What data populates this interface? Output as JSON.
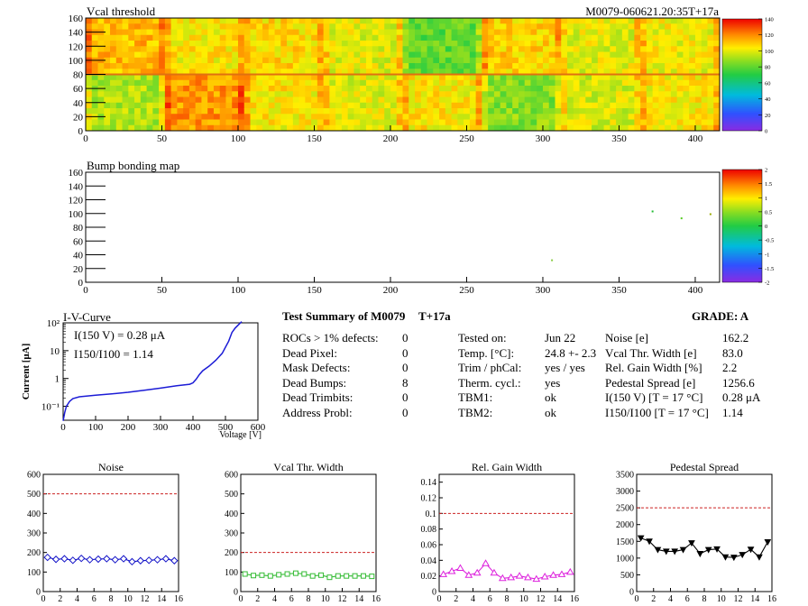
{
  "header": {
    "vcal_title": "Vcal threshold",
    "module_id": "M0079-060621.20:35T+17a",
    "bump_title": "Bump bonding map"
  },
  "colors": {
    "map_axis": "#000000",
    "iv_line": "#1c1cd6",
    "noise": "#1414c8",
    "vcal_width": "#33bb33",
    "gain_width": "#dd22dd",
    "pedestal": "#000000",
    "limit_line": "#cc2222"
  },
  "iv": {
    "title": "I-V-Curve",
    "ylabel": "Current [μA]",
    "xlabel": "Voltage [V]",
    "ann1": "I(150 V) = 0.28 μA",
    "ann2": "I150/I100 = 1.14",
    "ytick_labels": [
      "10²",
      "10",
      "1",
      "10⁻¹"
    ]
  },
  "summary": {
    "title": "Test Summary of M0079",
    "temp_tag": "T+17a",
    "grade": "GRADE:  A",
    "col1": [
      {
        "label": "ROCs > 1% defects:",
        "value": "0"
      },
      {
        "label": "Dead Pixel:",
        "value": "0"
      },
      {
        "label": "Mask Defects:",
        "value": "0"
      },
      {
        "label": "Dead Bumps:",
        "value": "8"
      },
      {
        "label": "Dead Trimbits:",
        "value": "0"
      },
      {
        "label": "Address Probl:",
        "value": "0"
      }
    ],
    "col2": [
      {
        "label": "Tested on:",
        "value": "Jun 22"
      },
      {
        "label": "Temp. [°C]:",
        "value": "24.8 +- 2.3"
      },
      {
        "label": "Trim / phCal:",
        "value": "yes / yes"
      },
      {
        "label": "Therm. cycl.:",
        "value": "yes"
      },
      {
        "label": "TBM1:",
        "value": "ok"
      },
      {
        "label": "TBM2:",
        "value": "ok"
      }
    ],
    "col3": [
      {
        "label": "Noise [e]",
        "value": "162.2"
      },
      {
        "label": "Vcal Thr. Width [e]",
        "value": "83.0"
      },
      {
        "label": "Rel. Gain Width [%]",
        "value": "2.2"
      },
      {
        "label": "Pedestal Spread [e]",
        "value": "1256.6"
      },
      {
        "label": "I(150 V) [T = 17 °C]",
        "value": "0.28 μA"
      },
      {
        "label": "I150/I100  [T = 17 °C]",
        "value": "1.14"
      }
    ]
  },
  "chart_data": [
    {
      "type": "heatmap",
      "title": "Vcal threshold",
      "xlim": [
        0,
        416
      ],
      "ylim": [
        0,
        160
      ],
      "xticks": [
        0,
        50,
        100,
        150,
        200,
        250,
        300,
        350,
        400
      ],
      "yticks": [
        0,
        20,
        40,
        60,
        80,
        100,
        120,
        140,
        160
      ],
      "zlim": [
        0,
        140
      ],
      "zticks": [
        0,
        20,
        40,
        60,
        80,
        100,
        120,
        140
      ],
      "roc_mean_upper": [
        112,
        104,
        106,
        100,
        80,
        108,
        100,
        102
      ],
      "roc_mean_lower": [
        92,
        118,
        104,
        100,
        104,
        86,
        98,
        104
      ]
    },
    {
      "type": "scatter",
      "title": "Bump bonding map",
      "xlim": [
        0,
        416
      ],
      "ylim": [
        0,
        160
      ],
      "xticks": [
        0,
        50,
        100,
        150,
        200,
        250,
        300,
        350,
        400
      ],
      "yticks": [
        0,
        20,
        40,
        60,
        80,
        100,
        120,
        140,
        160
      ],
      "zlim": [
        -2,
        2
      ],
      "zticks": [
        -2,
        -1.5,
        -1,
        -0.5,
        0,
        0.5,
        1,
        1.5,
        2
      ],
      "points": [
        [
          372,
          103
        ],
        [
          391,
          93
        ],
        [
          410,
          99
        ],
        [
          306,
          32
        ]
      ]
    },
    {
      "type": "line",
      "title": "I-V-Curve",
      "xlabel": "Voltage [V]",
      "ylabel": "Current [μA]",
      "xlim": [
        0,
        600
      ],
      "ylim_log10": [
        -1.5,
        2
      ],
      "xticks": [
        0,
        100,
        200,
        300,
        400,
        500,
        600
      ],
      "x": [
        0,
        5,
        10,
        20,
        30,
        50,
        100,
        150,
        200,
        250,
        300,
        350,
        390,
        400,
        410,
        420,
        430,
        450,
        470,
        490,
        510,
        520,
        530,
        540,
        550
      ],
      "y": [
        0.03,
        0.06,
        0.1,
        0.15,
        0.19,
        0.22,
        0.25,
        0.28,
        0.32,
        0.38,
        0.45,
        0.55,
        0.62,
        0.7,
        0.95,
        1.4,
        1.9,
        2.8,
        4.5,
        8,
        22,
        45,
        65,
        85,
        110
      ]
    },
    {
      "type": "line",
      "title": "Noise",
      "xlim": [
        0,
        16
      ],
      "ylim": [
        0,
        600
      ],
      "xticks": [
        0,
        2,
        4,
        6,
        8,
        10,
        12,
        14,
        16
      ],
      "yticks": [
        0,
        100,
        200,
        300,
        400,
        500,
        600
      ],
      "limit": 500,
      "x": [
        0,
        1,
        2,
        3,
        4,
        5,
        6,
        7,
        8,
        9,
        10,
        11,
        12,
        13,
        14,
        15
      ],
      "values": [
        175,
        165,
        168,
        160,
        170,
        163,
        166,
        168,
        163,
        168,
        153,
        158,
        160,
        163,
        168,
        158
      ]
    },
    {
      "type": "line",
      "title": "Vcal Thr. Width",
      "xlim": [
        0,
        16
      ],
      "ylim": [
        0,
        600
      ],
      "xticks": [
        0,
        2,
        4,
        6,
        8,
        10,
        12,
        14,
        16
      ],
      "yticks": [
        0,
        100,
        200,
        300,
        400,
        500,
        600
      ],
      "limit": 200,
      "x": [
        0,
        1,
        2,
        3,
        4,
        5,
        6,
        7,
        8,
        9,
        10,
        11,
        12,
        13,
        14,
        15
      ],
      "values": [
        90,
        82,
        84,
        80,
        86,
        90,
        94,
        90,
        80,
        84,
        73,
        80,
        80,
        80,
        80,
        78
      ]
    },
    {
      "type": "line",
      "title": "Rel. Gain Width",
      "xlim": [
        0,
        16
      ],
      "ylim": [
        0,
        0.15
      ],
      "xticks": [
        0,
        2,
        4,
        6,
        8,
        10,
        12,
        14,
        16
      ],
      "yticks": [
        0,
        0.02,
        0.04,
        0.06,
        0.08,
        0.1,
        0.12,
        0.14
      ],
      "limit": 0.1,
      "x": [
        0,
        1,
        2,
        3,
        4,
        5,
        6,
        7,
        8,
        9,
        10,
        11,
        12,
        13,
        14,
        15
      ],
      "values": [
        0.022,
        0.026,
        0.03,
        0.021,
        0.024,
        0.036,
        0.024,
        0.017,
        0.018,
        0.02,
        0.018,
        0.016,
        0.019,
        0.021,
        0.022,
        0.025
      ]
    },
    {
      "type": "line",
      "title": "Pedestal Spread",
      "xlim": [
        0,
        16
      ],
      "ylim": [
        0,
        3500
      ],
      "xticks": [
        0,
        2,
        4,
        6,
        8,
        10,
        12,
        14,
        16
      ],
      "yticks": [
        0,
        500,
        1000,
        1500,
        2000,
        2500,
        3000,
        3500
      ],
      "limit": 2500,
      "x": [
        0,
        1,
        2,
        3,
        4,
        5,
        6,
        7,
        8,
        9,
        10,
        11,
        12,
        13,
        14,
        15
      ],
      "values": [
        1600,
        1500,
        1250,
        1200,
        1200,
        1250,
        1450,
        1130,
        1250,
        1270,
        1030,
        1020,
        1100,
        1260,
        1030,
        1480
      ]
    }
  ]
}
